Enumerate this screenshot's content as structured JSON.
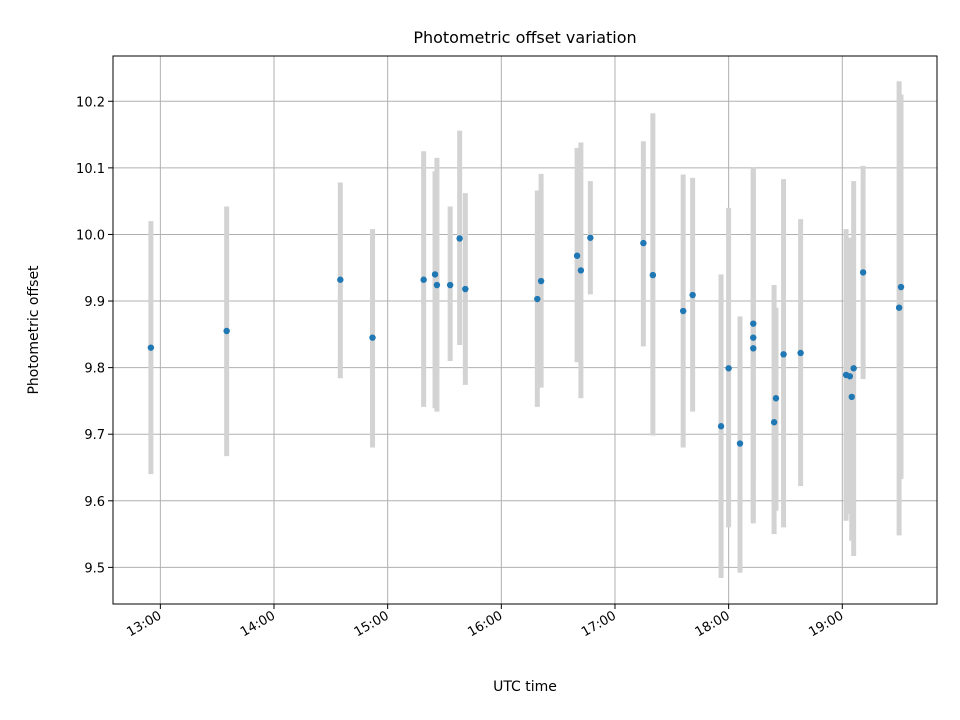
{
  "chart_data": {
    "type": "scatter",
    "title": "Photometric offset variation",
    "xlabel": "UTC time",
    "ylabel": "Photometric offset",
    "xlim": [
      "12:35",
      "19:50"
    ],
    "ylim": [
      9.445,
      10.268
    ],
    "x_ticks": [
      "13:00",
      "14:00",
      "15:00",
      "16:00",
      "17:00",
      "18:00",
      "19:00"
    ],
    "y_ticks": [
      "9.5",
      "9.6",
      "9.7",
      "9.8",
      "9.9",
      "10.0",
      "10.1",
      "10.2"
    ],
    "grid": true,
    "legend": false,
    "colors": {
      "point": "#1f77b4",
      "errorbar": "#d3d3d3",
      "grid": "#b0b0b0"
    },
    "series": [
      {
        "points": [
          {
            "t": "12:55",
            "y": 9.83,
            "low": 9.64,
            "high": 10.02
          },
          {
            "t": "13:35",
            "y": 9.855,
            "low": 9.667,
            "high": 10.042
          },
          {
            "t": "14:35",
            "y": 9.932,
            "low": 9.784,
            "high": 10.078
          },
          {
            "t": "14:52",
            "y": 9.845,
            "low": 9.68,
            "high": 10.008
          },
          {
            "t": "15:19",
            "y": 9.932,
            "low": 9.741,
            "high": 10.125
          },
          {
            "t": "15:25",
            "y": 9.94,
            "low": 9.739,
            "high": 10.095
          },
          {
            "t": "15:26",
            "y": 9.924,
            "low": 9.734,
            "high": 10.115
          },
          {
            "t": "15:33",
            "y": 9.924,
            "low": 9.81,
            "high": 10.042
          },
          {
            "t": "15:38",
            "y": 9.994,
            "low": 9.834,
            "high": 10.156
          },
          {
            "t": "15:41",
            "y": 9.918,
            "low": 9.774,
            "high": 10.062
          },
          {
            "t": "16:19",
            "y": 9.903,
            "low": 9.741,
            "high": 10.066
          },
          {
            "t": "16:21",
            "y": 9.93,
            "low": 9.77,
            "high": 10.091
          },
          {
            "t": "16:40",
            "y": 9.968,
            "low": 9.808,
            "high": 10.13
          },
          {
            "t": "16:42",
            "y": 9.946,
            "low": 9.754,
            "high": 10.138
          },
          {
            "t": "16:47",
            "y": 9.995,
            "low": 9.91,
            "high": 10.08
          },
          {
            "t": "17:15",
            "y": 9.987,
            "low": 9.832,
            "high": 10.14
          },
          {
            "t": "17:20",
            "y": 9.939,
            "low": 9.698,
            "high": 10.182
          },
          {
            "t": "17:36",
            "y": 9.885,
            "low": 9.68,
            "high": 10.09
          },
          {
            "t": "17:41",
            "y": 9.909,
            "low": 9.734,
            "high": 10.085
          },
          {
            "t": "17:56",
            "y": 9.712,
            "low": 9.484,
            "high": 9.94
          },
          {
            "t": "18:00",
            "y": 9.799,
            "low": 9.56,
            "high": 10.04
          },
          {
            "t": "18:06",
            "y": 9.686,
            "low": 9.492,
            "high": 9.877
          },
          {
            "t": "18:13",
            "y": 9.866,
            "low": 9.632,
            "high": 10.1
          },
          {
            "t": "18:13",
            "y": 9.845,
            "low": 9.57,
            "high": 10.1
          },
          {
            "t": "18:13",
            "y": 9.829,
            "low": 9.566,
            "high": 10.092
          },
          {
            "t": "18:24",
            "y": 9.718,
            "low": 9.55,
            "high": 9.924
          },
          {
            "t": "18:25",
            "y": 9.754,
            "low": 9.585,
            "high": 9.89
          },
          {
            "t": "18:29",
            "y": 9.82,
            "low": 9.56,
            "high": 10.083
          },
          {
            "t": "18:38",
            "y": 9.822,
            "low": 9.622,
            "high": 10.023
          },
          {
            "t": "19:02",
            "y": 9.789,
            "low": 9.57,
            "high": 10.008
          },
          {
            "t": "19:04",
            "y": 9.787,
            "low": 9.58,
            "high": 9.995
          },
          {
            "t": "19:05",
            "y": 9.756,
            "low": 9.54,
            "high": 9.955
          },
          {
            "t": "19:06",
            "y": 9.799,
            "low": 9.517,
            "high": 10.08
          },
          {
            "t": "19:11",
            "y": 9.943,
            "low": 9.783,
            "high": 10.103
          },
          {
            "t": "19:30",
            "y": 9.89,
            "low": 9.548,
            "high": 10.23
          },
          {
            "t": "19:31",
            "y": 9.921,
            "low": 9.633,
            "high": 10.21
          }
        ]
      }
    ]
  }
}
